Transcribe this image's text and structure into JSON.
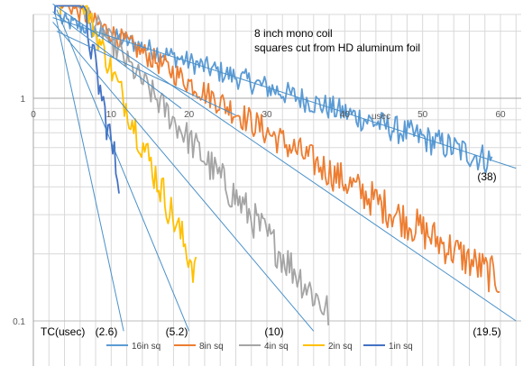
{
  "chart_data": {
    "type": "line",
    "title": "",
    "xlabel": "usec",
    "ylabel": "",
    "y_scale": "log",
    "xlim": [
      0,
      62
    ],
    "ylim": [
      0.1,
      2.6
    ],
    "x_ticks": [
      0,
      10,
      20,
      30,
      40,
      50,
      60
    ],
    "y_ticks": [
      0.1,
      1
    ],
    "grid": true,
    "legend_position": "bottom",
    "annotations": {
      "line1": "8 inch mono coil",
      "line2": "squares cut from HD aluminum foil"
    },
    "tc_label": "TC(usec)",
    "series": [
      {
        "name": "16in sq",
        "color": "#5B9BD5",
        "start": 3.5,
        "end": 59,
        "a": 2.25,
        "tc": 38,
        "tc_label": "(38)"
      },
      {
        "name": "8in sq",
        "color": "#ED7D31",
        "start": 3.5,
        "end": 60,
        "a": 2.75,
        "tc": 19.5,
        "tc_label": "(19.5)"
      },
      {
        "name": "4in sq",
        "color": "#A5A5A5",
        "start": 3.5,
        "end": 38,
        "a": 3.4,
        "tc": 10,
        "tc_label": "(10)"
      },
      {
        "name": "2in sq",
        "color": "#FFC000",
        "start": 3.5,
        "end": 21,
        "a": 4.7,
        "tc": 5.2,
        "tc_label": "(5.2)"
      },
      {
        "name": "1in sq",
        "color": "#4472C4",
        "start": 2.8,
        "end": 11,
        "a": 10.0,
        "tc": 2.6,
        "tc_label": "(2.6)"
      }
    ],
    "fit_lines": [
      {
        "x": [
          2.5,
          62
        ],
        "y": [
          2.3,
          0.485
        ]
      },
      {
        "x": [
          2.5,
          62
        ],
        "y": [
          2.65,
          0.1
        ]
      },
      {
        "x": [
          2.5,
          36
        ],
        "y": [
          2.2,
          0.09
        ]
      },
      {
        "x": [
          3.0,
          20.0
        ],
        "y": [
          2.5,
          0.09
        ]
      },
      {
        "x": [
          2.8,
          11.6
        ],
        "y": [
          2.4,
          0.09
        ]
      },
      {
        "x": [
          3.0,
          26.0
        ],
        "y": [
          2.0,
          0.84
        ]
      },
      {
        "x": [
          2.5,
          19.0
        ],
        "y": [
          2.45,
          0.9
        ]
      }
    ]
  }
}
